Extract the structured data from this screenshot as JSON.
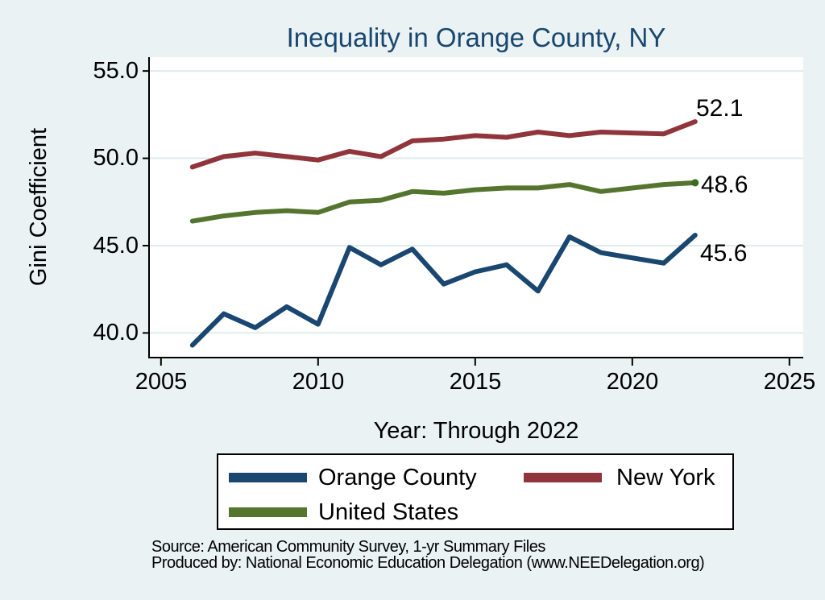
{
  "title": {
    "text": "Inequality in Orange County, NY",
    "color": "#1a476f"
  },
  "y_axis": {
    "label": "Gini Coefficient",
    "tick_labels": [
      "55.0",
      "50.0",
      "45.0",
      "40.0"
    ]
  },
  "x_axis": {
    "label": "Year: Through 2022",
    "tick_labels": [
      "2005",
      "2010",
      "2015",
      "2020",
      "2025"
    ]
  },
  "chart_data": {
    "type": "line",
    "x": [
      2006,
      2007,
      2008,
      2009,
      2010,
      2011,
      2012,
      2013,
      2014,
      2015,
      2016,
      2017,
      2018,
      2019,
      2021,
      2022
    ],
    "series": [
      {
        "name": "Orange County",
        "color": "#1a476f",
        "values": [
          39.3,
          41.1,
          40.3,
          41.5,
          40.5,
          44.9,
          43.9,
          44.8,
          42.8,
          43.5,
          43.9,
          42.4,
          45.5,
          44.6,
          44.0,
          45.6
        ],
        "end_label": "45.6",
        "end_marker": false
      },
      {
        "name": "New York",
        "color": "#90353b",
        "values": [
          49.5,
          50.1,
          50.3,
          50.1,
          49.9,
          50.4,
          50.1,
          51.0,
          51.1,
          51.3,
          51.2,
          51.5,
          51.3,
          51.5,
          51.4,
          52.1
        ],
        "end_label": "52.1",
        "end_marker": false
      },
      {
        "name": "United States",
        "color": "#55752f",
        "values": [
          46.4,
          46.7,
          46.9,
          47.0,
          46.9,
          47.5,
          47.6,
          48.1,
          48.0,
          48.2,
          48.3,
          48.3,
          48.5,
          48.1,
          48.5,
          48.6
        ],
        "end_label": "48.6",
        "end_marker": true,
        "end_marker_color": "#3a6b1f"
      }
    ],
    "xlim": [
      2004.62,
      2025.44
    ],
    "ylim": [
      38.59,
      55.79
    ],
    "grid_values": [
      40,
      45,
      50,
      55
    ],
    "x_tick_values": [
      2005,
      2010,
      2015,
      2020,
      2025
    ],
    "grid_on": true,
    "legend_position": "bottom",
    "grid_color": "#dfebed",
    "axis_color": "#000000",
    "background_color": "#eaf2f3",
    "plot_background_color": "#ffffff"
  },
  "legend": {
    "items": [
      {
        "label": "Orange County",
        "color": "#1a476f"
      },
      {
        "label": "New York",
        "color": "#90353b"
      },
      {
        "label": "United States",
        "color": "#55752f"
      }
    ]
  },
  "footer": {
    "lines": [
      "Source: American Community Survey, 1-yr Summary Files",
      "Produced by: National Economic Education Delegation (www.NEEDelegation.org)"
    ]
  }
}
